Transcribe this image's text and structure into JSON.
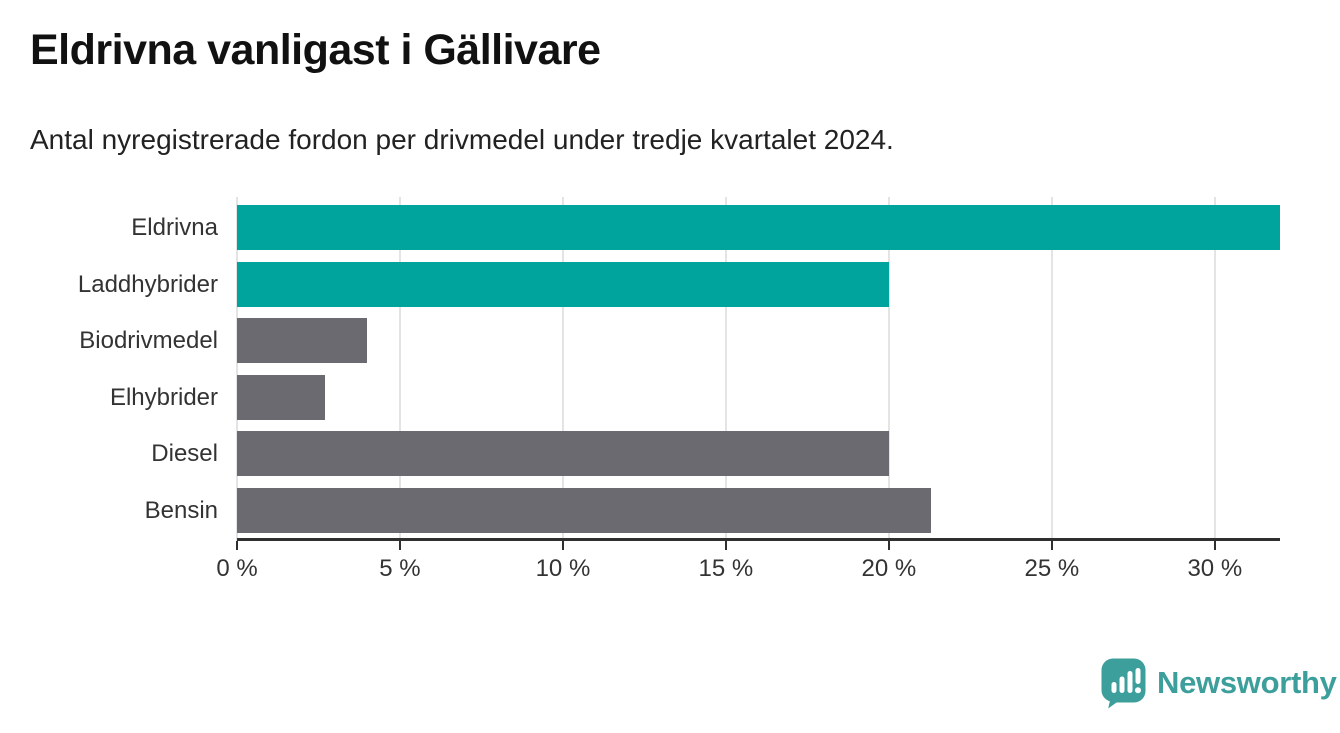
{
  "header": {
    "title": "Eldrivna vanligast i Gällivare",
    "subtitle": "Antal nyregistrerade fordon per drivmedel under tredje kvartalet 2024."
  },
  "chart_data": {
    "type": "bar",
    "orientation": "horizontal",
    "title": "Eldrivna vanligast i Gällivare",
    "subtitle": "Antal nyregistrerade fordon per drivmedel under tredje kvartalet 2024.",
    "categories": [
      "Eldrivna",
      "Laddhybrider",
      "Biodrivmedel",
      "Elhybrider",
      "Diesel",
      "Bensin"
    ],
    "values": [
      32,
      20,
      4,
      2.7,
      20,
      21.3
    ],
    "unit": "%",
    "xlim": [
      0,
      32
    ],
    "x_ticks": [
      0,
      5,
      10,
      15,
      20,
      25,
      30
    ],
    "x_tick_labels": [
      "0 %",
      "5 %",
      "10 %",
      "15 %",
      "20 %",
      "25 %",
      "30 %"
    ],
    "grid": true,
    "legend": false,
    "highlight_color": "#00a49c",
    "default_color": "#6b6a71",
    "bar_colors": [
      "#00a49c",
      "#00a49c",
      "#6b6a71",
      "#6b6a71",
      "#6b6a71",
      "#6b6a71"
    ],
    "gridline_color": "#e4e4e4",
    "axis_color": "#2f2f2f"
  },
  "branding": {
    "logo_text": "Newsworthy",
    "logo_color": "#3d9f9b",
    "logo_icon": "newsworthy-chart-bubble-icon"
  }
}
